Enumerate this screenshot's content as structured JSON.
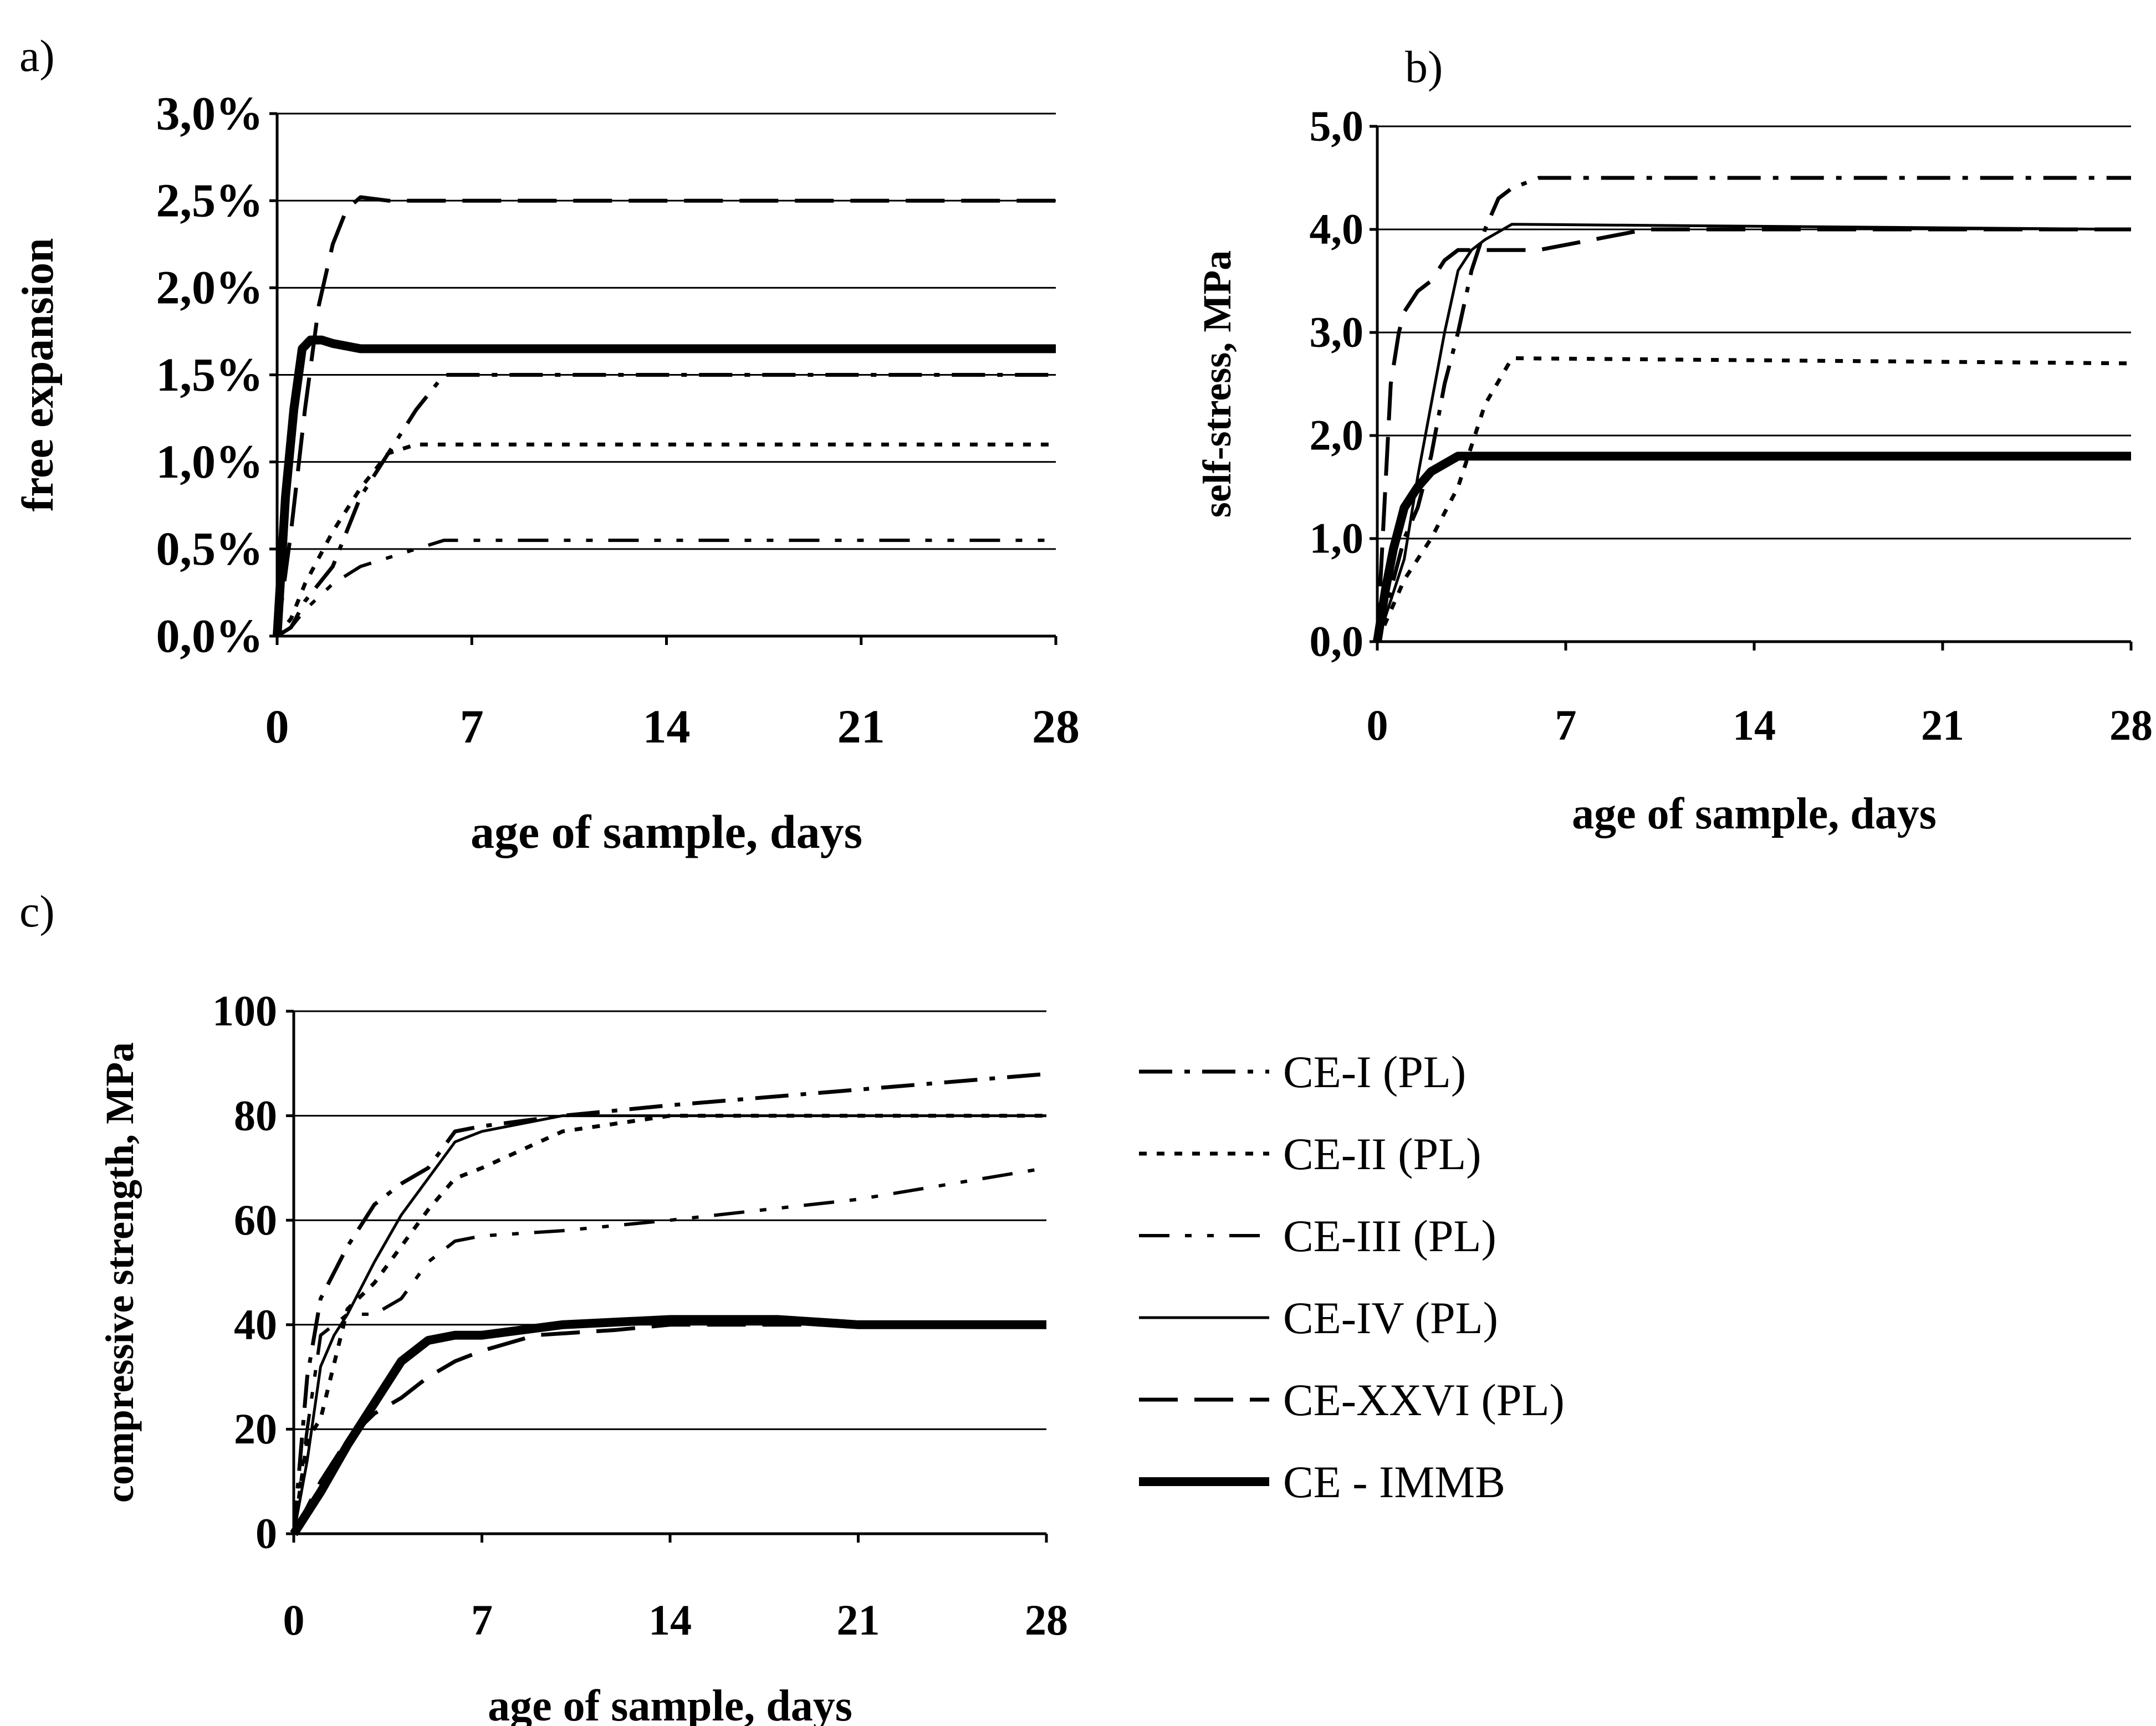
{
  "panels": [
    {
      "label": "a)",
      "chart_data": {
        "type": "line",
        "xlabel": "age of sample, days",
        "ylabel": "free expansion",
        "xlim": [
          0,
          28
        ],
        "ylim": [
          0,
          3.0
        ],
        "xticks": [
          0,
          7,
          14,
          21,
          28
        ],
        "xtick_labels": [
          "0",
          "7",
          "14",
          "21",
          "28"
        ],
        "yticks": [
          0,
          0.5,
          1.0,
          1.5,
          2.0,
          2.5,
          3.0
        ],
        "ytick_labels": [
          "0,0%",
          "0,5%",
          "1,0%",
          "1,5%",
          "2,0%",
          "2,5%",
          "3,0%"
        ],
        "grid": "horizontal",
        "series": [
          {
            "name": "CE-I (PL)",
            "x": [
              0,
              0.5,
              1,
              2,
              3,
              4,
              5,
              6,
              28
            ],
            "y": [
              0,
              0.05,
              0.2,
              0.4,
              0.8,
              1.05,
              1.3,
              1.5,
              1.5
            ]
          },
          {
            "name": "CE-II (PL)",
            "x": [
              0,
              0.5,
              1,
              2,
              3,
              4,
              5,
              28
            ],
            "y": [
              0,
              0.1,
              0.3,
              0.6,
              0.85,
              1.05,
              1.1,
              1.1
            ]
          },
          {
            "name": "CE-III (PL)",
            "x": [
              0,
              0.5,
              1,
              2,
              3,
              4,
              5,
              6,
              28
            ],
            "y": [
              0,
              0.05,
              0.15,
              0.3,
              0.4,
              0.45,
              0.5,
              0.55,
              0.55
            ]
          },
          {
            "name": "CE-XXVI (PL)",
            "x": [
              0,
              0.5,
              1,
              1.5,
              2,
              2.5,
              3,
              4,
              28
            ],
            "y": [
              0,
              0.6,
              1.3,
              1.9,
              2.25,
              2.45,
              2.52,
              2.5,
              2.5
            ]
          },
          {
            "name": "CE - IMMB",
            "x": [
              0,
              0.3,
              0.6,
              0.9,
              1.2,
              1.6,
              2,
              3,
              28
            ],
            "y": [
              0,
              0.8,
              1.3,
              1.65,
              1.7,
              1.7,
              1.68,
              1.65,
              1.65
            ]
          }
        ]
      }
    },
    {
      "label": "b)",
      "chart_data": {
        "type": "line",
        "xlabel": "age of sample, days",
        "ylabel": "self-stress, MPa",
        "xlim": [
          0,
          28
        ],
        "ylim": [
          0,
          5.0
        ],
        "xticks": [
          0,
          7,
          14,
          21,
          28
        ],
        "xtick_labels": [
          "0",
          "7",
          "14",
          "21",
          "28"
        ],
        "yticks": [
          0,
          1,
          2,
          3,
          4,
          5
        ],
        "ytick_labels": [
          "0,0",
          "1,0",
          "2,0",
          "3,0",
          "4,0",
          "5,0"
        ],
        "grid": "horizontal",
        "series": [
          {
            "name": "CE-I (PL)",
            "x": [
              0,
              0.5,
              1,
              1.5,
              2,
              2.5,
              3,
              3.5,
              4,
              4.5,
              5,
              6,
              28
            ],
            "y": [
              0,
              0.5,
              1.0,
              1.3,
              1.8,
              2.5,
              3.0,
              3.6,
              4.0,
              4.3,
              4.4,
              4.5,
              4.5
            ]
          },
          {
            "name": "CE-II (PL)",
            "x": [
              0,
              0.5,
              1,
              2,
              3,
              4,
              5,
              28
            ],
            "y": [
              0,
              0.3,
              0.6,
              1.0,
              1.5,
              2.3,
              2.75,
              2.7
            ]
          },
          {
            "name": "CE-IV (PL)",
            "x": [
              0,
              0.5,
              1,
              1.5,
              2,
              2.5,
              3,
              3.5,
              4,
              5,
              28
            ],
            "y": [
              0,
              0.4,
              0.8,
              1.6,
              2.3,
              3.0,
              3.6,
              3.8,
              3.9,
              4.05,
              4.0
            ]
          },
          {
            "name": "CE-XXVI (PL)",
            "x": [
              0,
              0.3,
              0.5,
              0.8,
              1,
              1.5,
              2,
              2.5,
              3,
              4,
              5,
              6,
              10,
              28
            ],
            "y": [
              0,
              1.5,
              2.5,
              3.0,
              3.2,
              3.4,
              3.5,
              3.7,
              3.8,
              3.8,
              3.8,
              3.8,
              4.0,
              4.0
            ]
          },
          {
            "name": "CE - IMMB",
            "x": [
              0,
              0.3,
              0.6,
              1,
              1.5,
              2,
              3,
              4,
              28
            ],
            "y": [
              0,
              0.5,
              0.9,
              1.3,
              1.5,
              1.65,
              1.8,
              1.8,
              1.8
            ]
          }
        ]
      }
    },
    {
      "label": "c)",
      "chart_data": {
        "type": "line",
        "xlabel": "age of sample, days",
        "ylabel": "compressive strength, MPa",
        "xlim": [
          0,
          28
        ],
        "ylim": [
          0,
          100
        ],
        "xticks": [
          0,
          7,
          14,
          21,
          28
        ],
        "xtick_labels": [
          "0",
          "7",
          "14",
          "21",
          "28"
        ],
        "yticks": [
          0,
          20,
          40,
          60,
          80,
          100
        ],
        "ytick_labels": [
          "0",
          "20",
          "40",
          "60",
          "80",
          "100"
        ],
        "grid": "horizontal",
        "series": [
          {
            "name": "CE-I (PL)",
            "x": [
              0,
              0.5,
              1,
              2,
              3,
              4,
              5,
              6,
              7,
              10,
              14,
              21,
              28
            ],
            "y": [
              0,
              30,
              45,
              55,
              63,
              67,
              70,
              77,
              78,
              80,
              82,
              85,
              88
            ]
          },
          {
            "name": "CE-II (PL)",
            "x": [
              0,
              0.5,
              1,
              2,
              3,
              4,
              5,
              6,
              7,
              10,
              14,
              21,
              28
            ],
            "y": [
              0,
              18,
              22,
              43,
              48,
              55,
              62,
              68,
              70,
              77,
              80,
              80,
              80
            ]
          },
          {
            "name": "CE-III (PL)",
            "x": [
              0,
              0.5,
              1,
              2,
              3,
              4,
              5,
              6,
              7,
              10,
              14,
              21,
              28
            ],
            "y": [
              0,
              20,
              38,
              42,
              42,
              45,
              52,
              56,
              57,
              58,
              60,
              64,
              70
            ]
          },
          {
            "name": "CE-IV (PL)",
            "x": [
              0,
              0.5,
              1,
              1.5,
              2,
              3,
              4,
              5,
              6,
              7,
              10,
              14,
              21,
              28
            ],
            "y": [
              0,
              14,
              32,
              38,
              42,
              52,
              61,
              68,
              75,
              77,
              80,
              80,
              80,
              80
            ]
          },
          {
            "name": "CE-XXVI (PL)",
            "x": [
              0,
              1,
              2,
              3,
              4,
              5,
              6,
              7,
              9,
              12,
              14,
              21,
              28
            ],
            "y": [
              0,
              10,
              18,
              23,
              26,
              30,
              33,
              35,
              38,
              39,
              40,
              40,
              40
            ]
          },
          {
            "name": "CE - IMMB",
            "x": [
              0,
              1,
              2,
              3,
              4,
              5,
              6,
              7,
              10,
              14,
              18,
              21,
              28
            ],
            "y": [
              0,
              8,
              17,
              25,
              33,
              37,
              38,
              38,
              40,
              41,
              41,
              40,
              40
            ]
          }
        ]
      }
    }
  ],
  "legend": [
    {
      "name": "CE-I (PL)"
    },
    {
      "name": "CE-II (PL)"
    },
    {
      "name": "CE-III (PL)"
    },
    {
      "name": "CE-IV (PL)"
    },
    {
      "name": "CE-XXVI (PL)"
    },
    {
      "name": "CE - IMMB"
    }
  ]
}
